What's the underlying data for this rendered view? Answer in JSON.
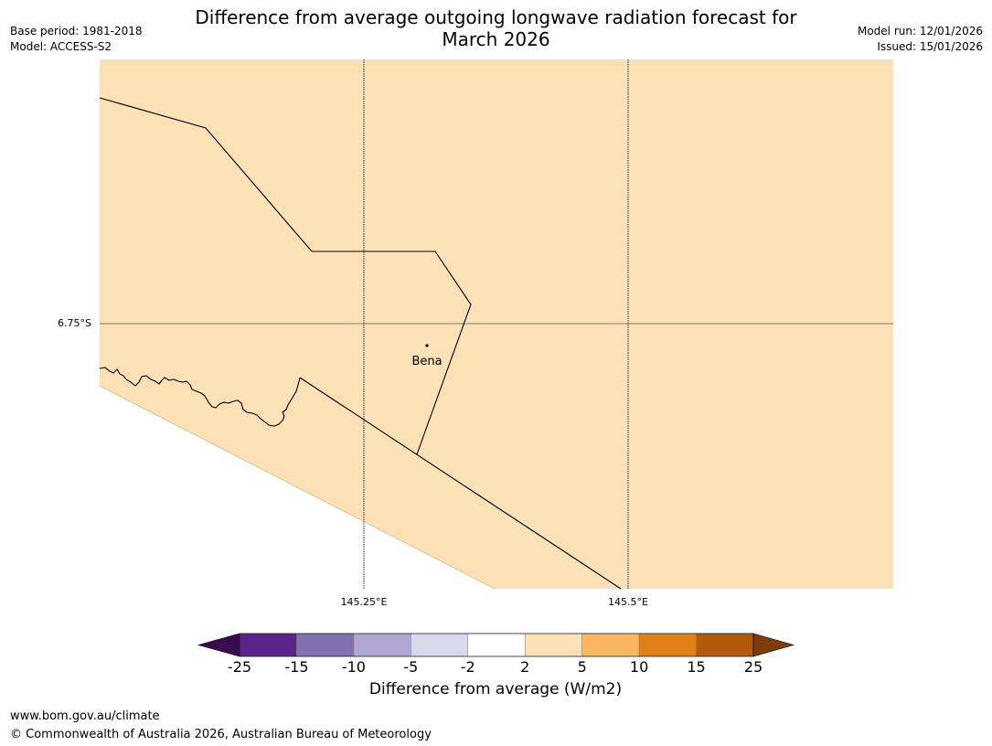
{
  "title": "Difference from average outgoing longwave radiation forecast for\nMarch 2026",
  "meta_left": {
    "base_period": "Base period: 1981-2018",
    "model": "Model: ACCESS-S2"
  },
  "meta_right": {
    "model_run": "Model run: 12/01/2026",
    "issued": "Issued: 15/01/2026"
  },
  "map": {
    "fill_color": "#fce0b6",
    "place_label": "Bena",
    "lat_label": "6.75°S",
    "lon_labels": [
      "145.25°E",
      "145.5°E"
    ]
  },
  "colorbar": {
    "label": "Difference from average (W/m2)",
    "ticks": [
      "-25",
      "-15",
      "-10",
      "-5",
      "-2",
      "2",
      "5",
      "10",
      "15",
      "25"
    ],
    "colors": [
      "#3a0b4f",
      "#59238a",
      "#8370b0",
      "#b0a6d3",
      "#d9d9ec",
      "#ffffff",
      "#fce0b6",
      "#fbb660",
      "#e08117",
      "#b25a06",
      "#7f3b08"
    ]
  },
  "footer": {
    "url": "www.bom.gov.au/climate",
    "copyright": "© Commonwealth of Australia 2026, Australian Bureau of Meteorology"
  }
}
